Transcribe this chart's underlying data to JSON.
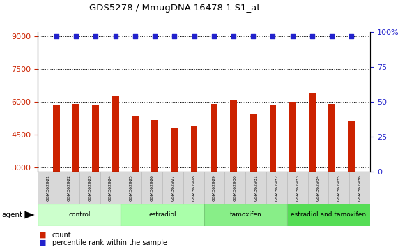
{
  "title": "GDS5278 / MmugDNA.16478.1.S1_at",
  "samples": [
    "GSM362921",
    "GSM362922",
    "GSM362923",
    "GSM362924",
    "GSM362925",
    "GSM362926",
    "GSM362927",
    "GSM362928",
    "GSM362929",
    "GSM362930",
    "GSM362931",
    "GSM362932",
    "GSM362933",
    "GSM362934",
    "GSM362935",
    "GSM362936"
  ],
  "counts": [
    5850,
    5900,
    5870,
    6250,
    5350,
    5180,
    4780,
    4900,
    5900,
    6050,
    5450,
    5850,
    5990,
    6380,
    5900,
    5100
  ],
  "percentiles": [
    100,
    100,
    100,
    100,
    100,
    100,
    100,
    100,
    100,
    100,
    100,
    100,
    100,
    100,
    100,
    100
  ],
  "bar_color": "#cc2200",
  "dot_color": "#2222cc",
  "ylim_left": [
    2800,
    9200
  ],
  "ylim_right": [
    0,
    100
  ],
  "yticks_left": [
    3000,
    4500,
    6000,
    7500,
    9000
  ],
  "yticks_right": [
    0,
    25,
    50,
    75,
    100
  ],
  "groups": [
    {
      "label": "control",
      "start": 0,
      "end": 4,
      "color": "#ccffcc"
    },
    {
      "label": "estradiol",
      "start": 4,
      "end": 8,
      "color": "#aaffaa"
    },
    {
      "label": "tamoxifen",
      "start": 8,
      "end": 12,
      "color": "#88ee88"
    },
    {
      "label": "estradiol and tamoxifen",
      "start": 12,
      "end": 16,
      "color": "#55dd55"
    }
  ],
  "agent_label": "agent",
  "legend_count_label": "count",
  "legend_pct_label": "percentile rank within the sample",
  "tick_label_color_left": "#cc2200",
  "tick_label_color_right": "#2222cc",
  "bar_width": 0.35
}
